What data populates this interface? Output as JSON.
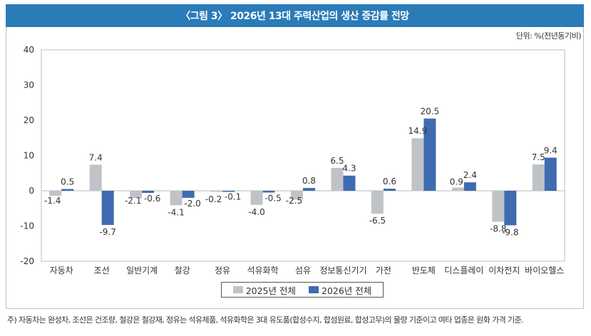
{
  "header": {
    "title": "〈그림 3〉 2026년 13대 주력산업의 생산 증감률 전망",
    "unit": "단위: %(전년동기비)"
  },
  "footnote": "주) 자동차는 완성차, 조선은 건조량, 철강은 철강재, 정유는 석유제품, 석유화학은 3대 유도품(합성수지, 합섬원료, 합성고무)의 물량 기준이고 여타 업종은 원화 가격 기준.",
  "colors": {
    "title_bar": "#2a7bb8",
    "series_2025": "#bfc3c8",
    "series_2026": "#3f6bb0",
    "axis": "#c8c8c8"
  },
  "chart_data": {
    "type": "bar",
    "title": "〈그림 3〉 2026년 13대 주력산업의 생산 증감률 전망",
    "xlabel": "",
    "ylabel": "단위: %(전년동기비)",
    "ylim": [
      -20,
      40
    ],
    "yticks": [
      40,
      30,
      20,
      10,
      0,
      -10,
      -20
    ],
    "grid": false,
    "legend_position": "bottom-center",
    "categories": [
      "자동차",
      "조선",
      "일반기계",
      "철강",
      "정유",
      "석유화학",
      "섬유",
      "정보통신기기",
      "가전",
      "반도체",
      "디스플레이",
      "이차전지",
      "바이오헬스"
    ],
    "series": [
      {
        "name": "2025년 전체",
        "color": "#bfc3c8",
        "values": [
          -1.4,
          7.4,
          -2.1,
          -4.1,
          -0.2,
          -4.0,
          -2.5,
          6.5,
          -6.5,
          14.9,
          0.9,
          -8.8,
          7.5
        ],
        "labels": [
          "-1.4",
          "7.4",
          "-2.1",
          "-4.1",
          "-0.2",
          "-4.0",
          "-2.5",
          "6.5",
          "-6.5",
          "14.9",
          "0.9",
          "-8.8",
          "7.5"
        ]
      },
      {
        "name": "2026년 전체",
        "color": "#3f6bb0",
        "values": [
          0.5,
          -9.7,
          -0.6,
          -2.0,
          -0.1,
          -0.5,
          0.8,
          4.3,
          0.6,
          20.5,
          2.4,
          -9.8,
          9.4
        ],
        "labels": [
          "0.5",
          "-9.7",
          "-0.6",
          "-2.0",
          "-0.1",
          "-0.5",
          "0.8",
          "4.3",
          "0.6",
          "20.5",
          "2.4",
          "-9.8",
          "9.4"
        ]
      }
    ]
  }
}
